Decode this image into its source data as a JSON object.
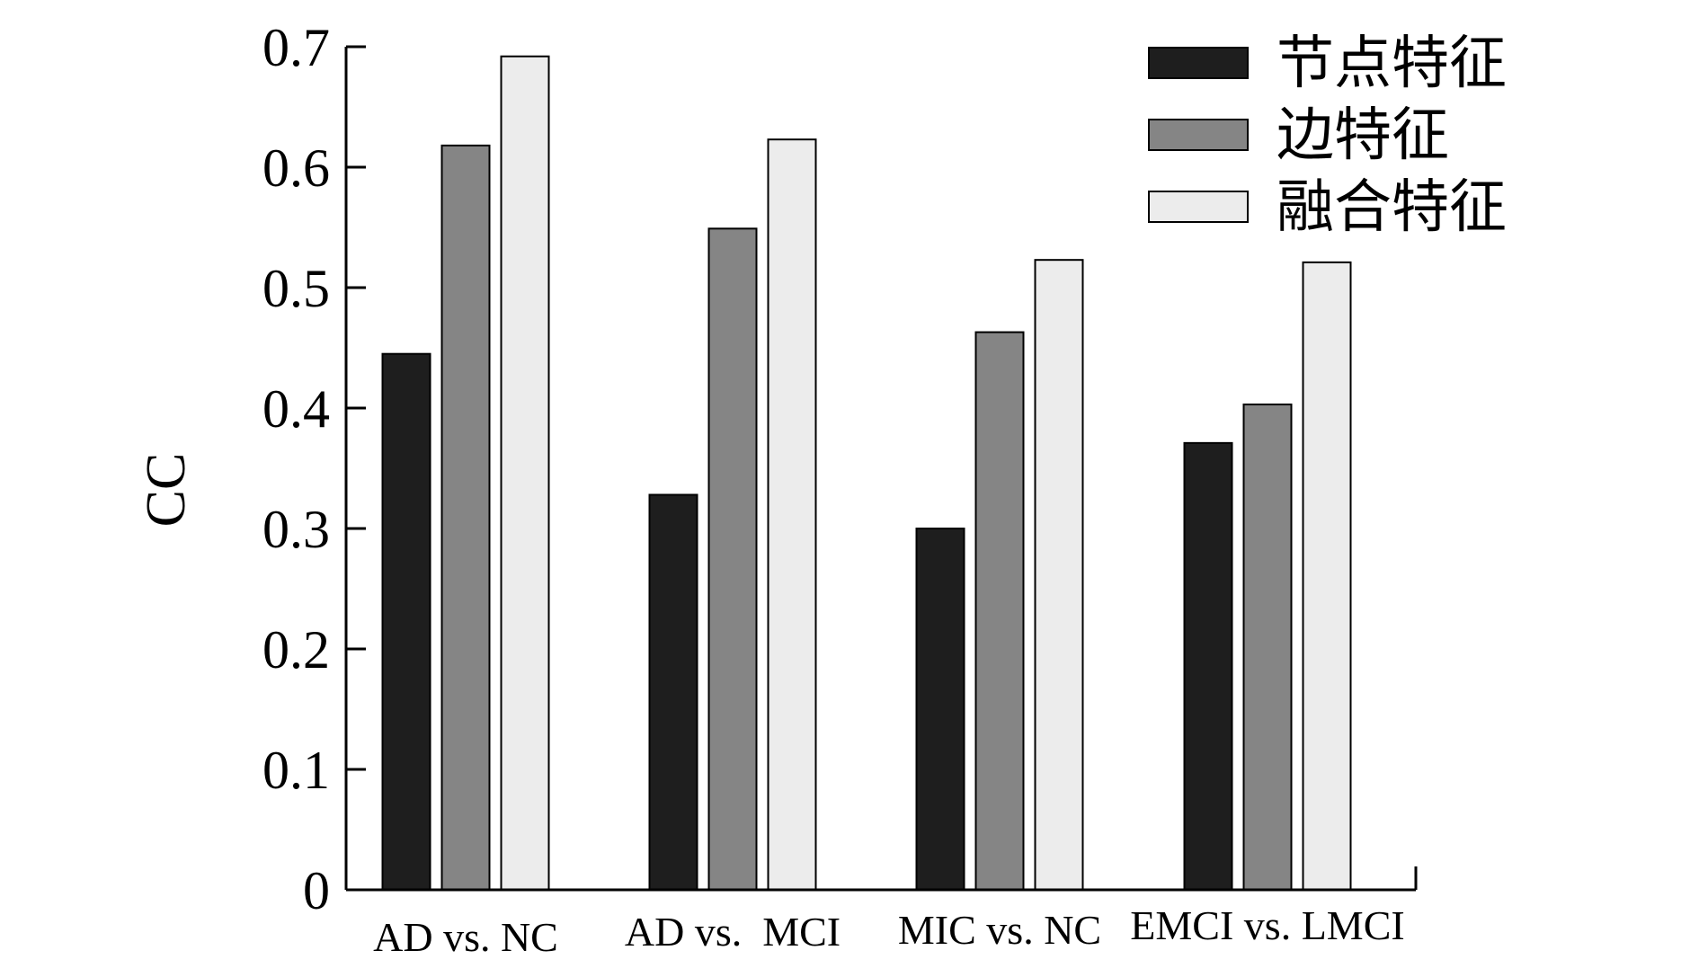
{
  "chart_data": {
    "type": "bar",
    "title": "",
    "xlabel": "",
    "ylabel": "CC",
    "ylim": [
      0,
      0.7
    ],
    "yticks": [
      "0",
      "0.1",
      "0.2",
      "0.3",
      "0.4",
      "0.5",
      "0.6",
      "0.7"
    ],
    "categories": [
      "AD vs. NC",
      "AD vs.  MCI",
      "MIC vs. NC",
      "EMCI vs. LMCI"
    ],
    "series": [
      {
        "name": "节点特征",
        "color": "#1e1e1e",
        "values": [
          0.445,
          0.328,
          0.3,
          0.371
        ]
      },
      {
        "name": "边特征",
        "color": "#858585",
        "values": [
          0.618,
          0.549,
          0.463,
          0.403
        ]
      },
      {
        "name": "融合特征",
        "color": "#ececec",
        "values": [
          0.692,
          0.623,
          0.523,
          0.521
        ]
      }
    ],
    "legend_position": "top-right",
    "grid": false
  }
}
